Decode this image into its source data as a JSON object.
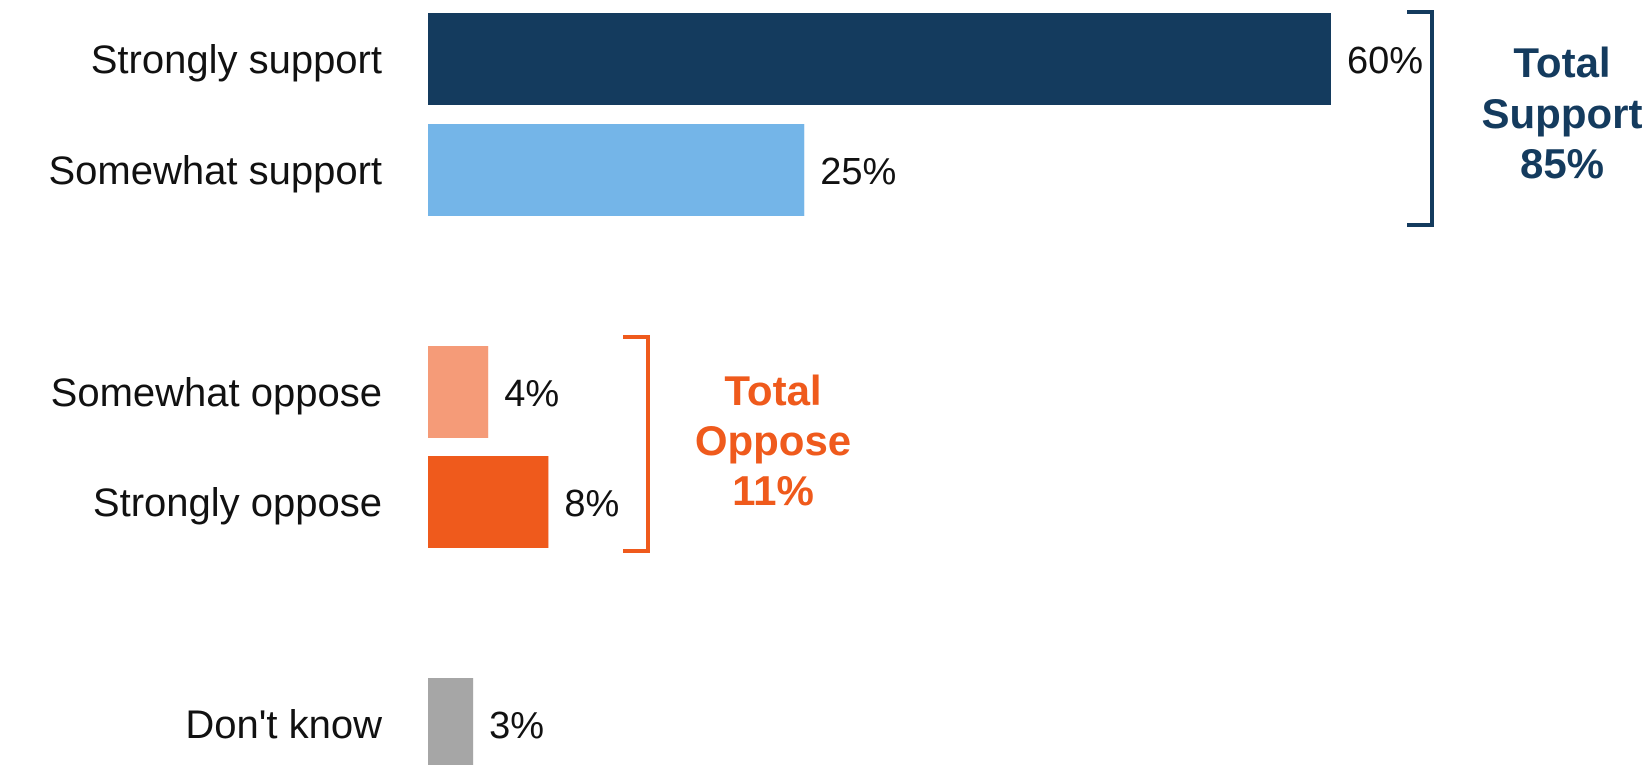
{
  "chart_data": {
    "type": "bar",
    "orientation": "horizontal",
    "categories": [
      "Strongly support",
      "Somewhat support",
      "Somewhat oppose",
      "Strongly oppose",
      "Don't know"
    ],
    "values": [
      60,
      25,
      4,
      8,
      3
    ],
    "value_labels": [
      "60%",
      "25%",
      "4%",
      "8%",
      "3%"
    ],
    "colors": [
      "#143b5e",
      "#74b5e8",
      "#f59b78",
      "#ef5a1c",
      "#a6a6a6"
    ],
    "xlim": [
      0,
      60
    ],
    "grid": false,
    "groups": [
      {
        "members": [
          "Strongly support",
          "Somewhat support"
        ],
        "label_lines": [
          "Total",
          "Support",
          "85%"
        ],
        "color": "#143b5e"
      },
      {
        "members": [
          "Somewhat oppose",
          "Strongly oppose"
        ],
        "label_lines": [
          "Total",
          "Oppose",
          "11%"
        ],
        "color": "#ef5a1c"
      }
    ]
  }
}
